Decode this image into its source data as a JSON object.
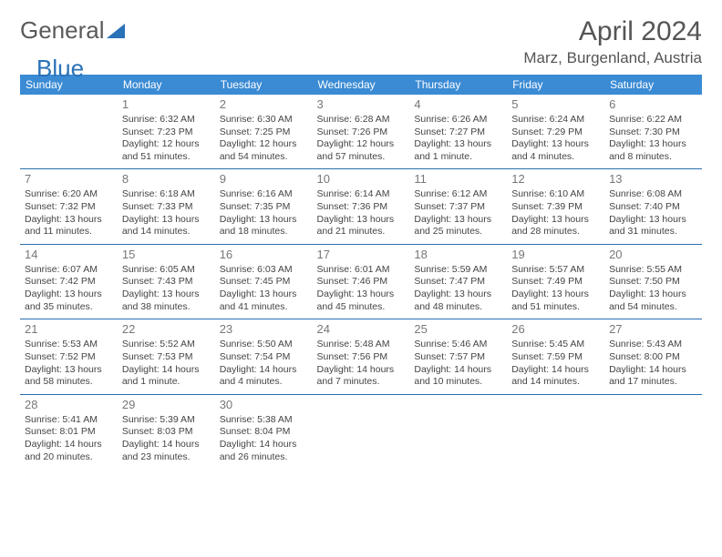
{
  "logo": {
    "word1": "General",
    "word2": "Blue"
  },
  "title": "April 2024",
  "location": "Marz, Burgenland, Austria",
  "colors": {
    "header_bg": "#3b8bd4",
    "header_text": "#ffffff",
    "cell_border": "#2a6fb0",
    "logo_gray": "#5a5a5a",
    "logo_blue": "#2972b8",
    "text": "#444444",
    "daynum": "#777777"
  },
  "day_headers": [
    "Sunday",
    "Monday",
    "Tuesday",
    "Wednesday",
    "Thursday",
    "Friday",
    "Saturday"
  ],
  "weeks": [
    [
      null,
      {
        "n": "1",
        "sr": "6:32 AM",
        "ss": "7:23 PM",
        "dl": "12 hours and 51 minutes."
      },
      {
        "n": "2",
        "sr": "6:30 AM",
        "ss": "7:25 PM",
        "dl": "12 hours and 54 minutes."
      },
      {
        "n": "3",
        "sr": "6:28 AM",
        "ss": "7:26 PM",
        "dl": "12 hours and 57 minutes."
      },
      {
        "n": "4",
        "sr": "6:26 AM",
        "ss": "7:27 PM",
        "dl": "13 hours and 1 minute."
      },
      {
        "n": "5",
        "sr": "6:24 AM",
        "ss": "7:29 PM",
        "dl": "13 hours and 4 minutes."
      },
      {
        "n": "6",
        "sr": "6:22 AM",
        "ss": "7:30 PM",
        "dl": "13 hours and 8 minutes."
      }
    ],
    [
      {
        "n": "7",
        "sr": "6:20 AM",
        "ss": "7:32 PM",
        "dl": "13 hours and 11 minutes."
      },
      {
        "n": "8",
        "sr": "6:18 AM",
        "ss": "7:33 PM",
        "dl": "13 hours and 14 minutes."
      },
      {
        "n": "9",
        "sr": "6:16 AM",
        "ss": "7:35 PM",
        "dl": "13 hours and 18 minutes."
      },
      {
        "n": "10",
        "sr": "6:14 AM",
        "ss": "7:36 PM",
        "dl": "13 hours and 21 minutes."
      },
      {
        "n": "11",
        "sr": "6:12 AM",
        "ss": "7:37 PM",
        "dl": "13 hours and 25 minutes."
      },
      {
        "n": "12",
        "sr": "6:10 AM",
        "ss": "7:39 PM",
        "dl": "13 hours and 28 minutes."
      },
      {
        "n": "13",
        "sr": "6:08 AM",
        "ss": "7:40 PM",
        "dl": "13 hours and 31 minutes."
      }
    ],
    [
      {
        "n": "14",
        "sr": "6:07 AM",
        "ss": "7:42 PM",
        "dl": "13 hours and 35 minutes."
      },
      {
        "n": "15",
        "sr": "6:05 AM",
        "ss": "7:43 PM",
        "dl": "13 hours and 38 minutes."
      },
      {
        "n": "16",
        "sr": "6:03 AM",
        "ss": "7:45 PM",
        "dl": "13 hours and 41 minutes."
      },
      {
        "n": "17",
        "sr": "6:01 AM",
        "ss": "7:46 PM",
        "dl": "13 hours and 45 minutes."
      },
      {
        "n": "18",
        "sr": "5:59 AM",
        "ss": "7:47 PM",
        "dl": "13 hours and 48 minutes."
      },
      {
        "n": "19",
        "sr": "5:57 AM",
        "ss": "7:49 PM",
        "dl": "13 hours and 51 minutes."
      },
      {
        "n": "20",
        "sr": "5:55 AM",
        "ss": "7:50 PM",
        "dl": "13 hours and 54 minutes."
      }
    ],
    [
      {
        "n": "21",
        "sr": "5:53 AM",
        "ss": "7:52 PM",
        "dl": "13 hours and 58 minutes."
      },
      {
        "n": "22",
        "sr": "5:52 AM",
        "ss": "7:53 PM",
        "dl": "14 hours and 1 minute."
      },
      {
        "n": "23",
        "sr": "5:50 AM",
        "ss": "7:54 PM",
        "dl": "14 hours and 4 minutes."
      },
      {
        "n": "24",
        "sr": "5:48 AM",
        "ss": "7:56 PM",
        "dl": "14 hours and 7 minutes."
      },
      {
        "n": "25",
        "sr": "5:46 AM",
        "ss": "7:57 PM",
        "dl": "14 hours and 10 minutes."
      },
      {
        "n": "26",
        "sr": "5:45 AM",
        "ss": "7:59 PM",
        "dl": "14 hours and 14 minutes."
      },
      {
        "n": "27",
        "sr": "5:43 AM",
        "ss": "8:00 PM",
        "dl": "14 hours and 17 minutes."
      }
    ],
    [
      {
        "n": "28",
        "sr": "5:41 AM",
        "ss": "8:01 PM",
        "dl": "14 hours and 20 minutes."
      },
      {
        "n": "29",
        "sr": "5:39 AM",
        "ss": "8:03 PM",
        "dl": "14 hours and 23 minutes."
      },
      {
        "n": "30",
        "sr": "5:38 AM",
        "ss": "8:04 PM",
        "dl": "14 hours and 26 minutes."
      },
      null,
      null,
      null,
      null
    ]
  ],
  "labels": {
    "sunrise": "Sunrise: ",
    "sunset": "Sunset: ",
    "daylight": "Daylight: "
  }
}
